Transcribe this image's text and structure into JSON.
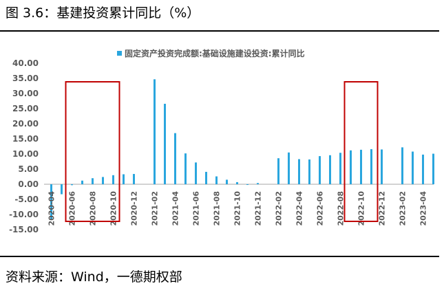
{
  "figure": {
    "title": "图 3.6：基建投资累计同比（%）",
    "source": "资料来源：Wind，一德期权部"
  },
  "colors": {
    "bar": "#2AA6DE",
    "highlight_box": "#C00000",
    "axis_text": "#595959",
    "zero_line": "#A6A6A6"
  },
  "chart_data": {
    "type": "bar",
    "legend": "固定资产投资完成额:基础设施建设投资:累计同比",
    "legend_position": "top-center",
    "grid": false,
    "ylim": [
      -15,
      40
    ],
    "yticks": [
      "40.00",
      "35.00",
      "30.00",
      "25.00",
      "20.00",
      "15.00",
      "10.00",
      "5.00",
      "0.00",
      "-5.00",
      "-10.00",
      "-15.00"
    ],
    "xtick_labels": [
      "2020-04",
      "2020-06",
      "2020-08",
      "2020-10",
      "2020-12",
      "2021-02",
      "2021-04",
      "2021-06",
      "2021-08",
      "2021-10",
      "2021-12",
      "2022-02",
      "2022-04",
      "2022-06",
      "2022-08",
      "2022-10",
      "2022-12",
      "2023-02",
      "2023-04"
    ],
    "categories": [
      "2020-04",
      "2020-05",
      "2020-06",
      "2020-07",
      "2020-08",
      "2020-09",
      "2020-10",
      "2020-11",
      "2020-12",
      "2021-01",
      "2021-02",
      "2021-03",
      "2021-04",
      "2021-05",
      "2021-06",
      "2021-07",
      "2021-08",
      "2021-09",
      "2021-10",
      "2021-11",
      "2021-12",
      "2022-01",
      "2022-02",
      "2022-03",
      "2022-04",
      "2022-05",
      "2022-06",
      "2022-07",
      "2022-08",
      "2022-09",
      "2022-10",
      "2022-11",
      "2022-12",
      "2023-01",
      "2023-02",
      "2023-03",
      "2023-04",
      "2023-05"
    ],
    "values": [
      -11.8,
      -3.3,
      -0.3,
      1.2,
      2.0,
      2.4,
      3.0,
      3.3,
      3.4,
      null,
      34.7,
      26.6,
      16.9,
      10.2,
      7.2,
      4.1,
      2.6,
      1.5,
      0.7,
      -0.2,
      0.4,
      null,
      8.6,
      10.5,
      8.3,
      8.2,
      9.3,
      9.6,
      10.4,
      11.2,
      11.4,
      11.6,
      11.5,
      null,
      12.2,
      10.8,
      9.8,
      10.1
    ],
    "highlight_ranges": [
      {
        "from": "2020-06",
        "to": "2020-10"
      },
      {
        "from": "2022-09",
        "to": "2022-11"
      }
    ]
  }
}
